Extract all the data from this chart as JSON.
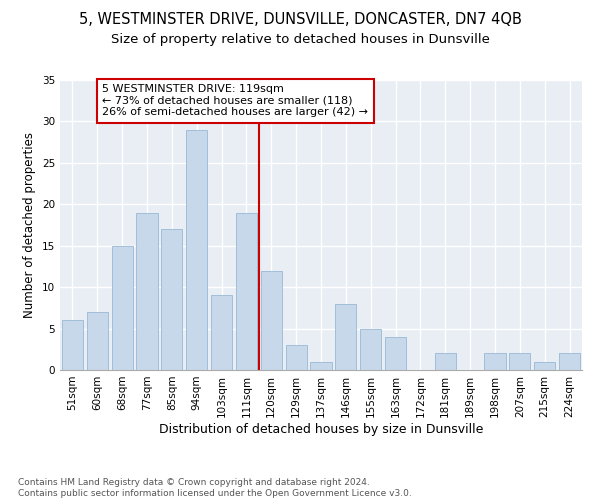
{
  "title": "5, WESTMINSTER DRIVE, DUNSVILLE, DONCASTER, DN7 4QB",
  "subtitle": "Size of property relative to detached houses in Dunsville",
  "xlabel": "Distribution of detached houses by size in Dunsville",
  "ylabel": "Number of detached properties",
  "categories": [
    "51sqm",
    "60sqm",
    "68sqm",
    "77sqm",
    "85sqm",
    "94sqm",
    "103sqm",
    "111sqm",
    "120sqm",
    "129sqm",
    "137sqm",
    "146sqm",
    "155sqm",
    "163sqm",
    "172sqm",
    "181sqm",
    "189sqm",
    "198sqm",
    "207sqm",
    "215sqm",
    "224sqm"
  ],
  "values": [
    6,
    7,
    15,
    19,
    17,
    29,
    9,
    19,
    12,
    3,
    1,
    8,
    5,
    4,
    0,
    2,
    0,
    2,
    2,
    1,
    2
  ],
  "bar_color": "#c8d8eb",
  "bar_edge_color": "#9ab8d4",
  "vline_x": 8.0,
  "vline_color": "#cc0000",
  "annotation_text": "5 WESTMINSTER DRIVE: 119sqm\n← 73% of detached houses are smaller (118)\n26% of semi-detached houses are larger (42) →",
  "annotation_box_color": "#ffffff",
  "annotation_box_edge": "#cc0000",
  "ylim": [
    0,
    35
  ],
  "yticks": [
    0,
    5,
    10,
    15,
    20,
    25,
    30,
    35
  ],
  "bg_color": "#e8eef4",
  "grid_color": "#ffffff",
  "footer": "Contains HM Land Registry data © Crown copyright and database right 2024.\nContains public sector information licensed under the Open Government Licence v3.0.",
  "title_fontsize": 10.5,
  "subtitle_fontsize": 9.5,
  "xlabel_fontsize": 9,
  "ylabel_fontsize": 8.5,
  "tick_fontsize": 7.5,
  "annotation_fontsize": 8,
  "footer_fontsize": 6.5
}
